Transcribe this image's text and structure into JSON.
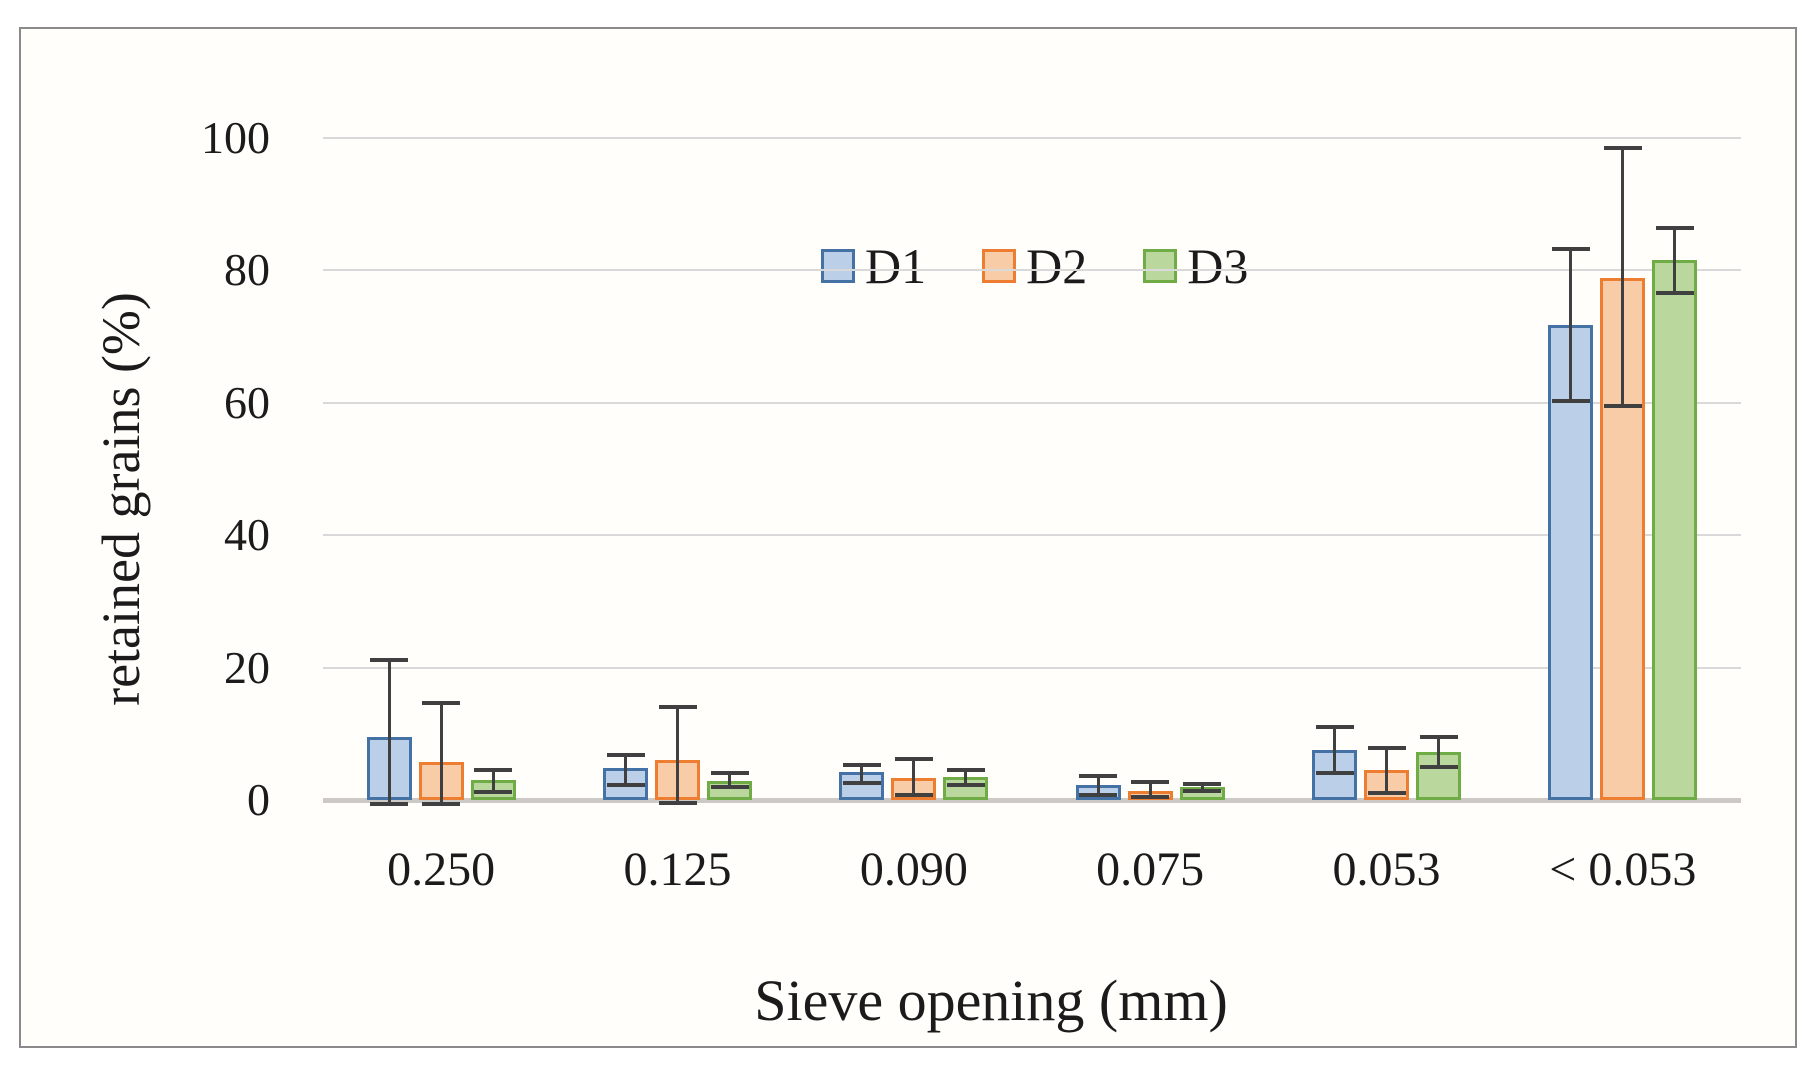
{
  "chart_data": {
    "type": "bar",
    "title": "",
    "xlabel": "Sieve opening (mm)",
    "ylabel": "retained grains (%)",
    "ylim": [
      0,
      100
    ],
    "yticks": [
      0,
      20,
      40,
      60,
      80,
      100
    ],
    "grid": true,
    "legend_position": "top-center-inside",
    "categories": [
      "0.250",
      "0.125",
      "0.090",
      "0.075",
      "0.053",
      "< 0.053"
    ],
    "series": [
      {
        "name": "D1",
        "fill": "#BCCFE8",
        "border": "#4472A4",
        "values": [
          9.5,
          4.8,
          4.2,
          2.3,
          7.6,
          71.8
        ],
        "err_low": [
          -0.6,
          2.2,
          2.5,
          0.8,
          4.1,
          60.2
        ],
        "err_high": [
          21.2,
          6.8,
          5.3,
          3.6,
          11.0,
          83.2
        ]
      },
      {
        "name": "D2",
        "fill": "#F9CCA8",
        "border": "#ED7D31",
        "values": [
          5.7,
          6.1,
          3.3,
          1.4,
          4.5,
          78.9
        ],
        "err_low": [
          -0.6,
          -0.5,
          0.7,
          0.5,
          1.0,
          59.5
        ],
        "err_high": [
          14.7,
          14.1,
          6.2,
          2.7,
          7.8,
          98.5
        ]
      },
      {
        "name": "D3",
        "fill": "#BAD79E",
        "border": "#6FAC46",
        "values": [
          3.0,
          2.9,
          3.4,
          1.9,
          7.2,
          81.6
        ],
        "err_low": [
          1.2,
          2.0,
          2.3,
          1.3,
          5.0,
          76.6
        ],
        "err_high": [
          4.5,
          4.1,
          4.5,
          2.4,
          9.5,
          86.4
        ]
      }
    ],
    "colors": {
      "error_bar": "#404040",
      "gridline": "#D9D9D9",
      "baseline": "#CCC9C6",
      "text": "#1b1b1b",
      "frame_border": "#8a8a8a"
    }
  }
}
